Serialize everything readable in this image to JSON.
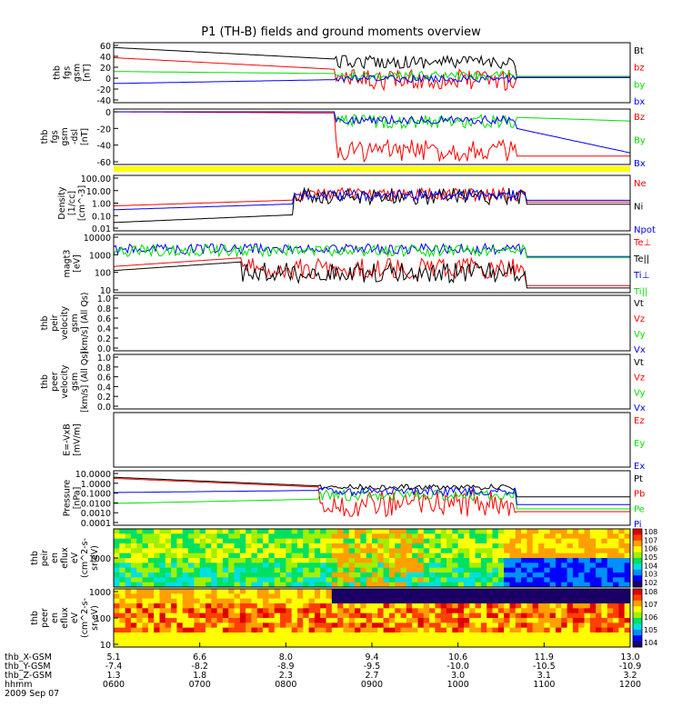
{
  "title": "P1 (TH-B) fields and ground moments overview",
  "colors": {
    "black": "#000000",
    "red": "#ff0000",
    "green": "#00e000",
    "blue": "#0000ff",
    "yellow": "#ffff00"
  },
  "chart_data": [
    {
      "type": "line",
      "id": "fgs-gsm",
      "ylabel": [
        "thb",
        "fgs",
        "gsm",
        "[nT]"
      ],
      "yticks": [
        "60",
        "40",
        "20",
        "0",
        "-20",
        "-40"
      ],
      "yrange": [
        -40,
        60
      ],
      "series": [
        {
          "name": "Bt",
          "color": "#000000"
        },
        {
          "name": "bz",
          "color": "#ff0000"
        },
        {
          "name": "by",
          "color": "#00e000"
        },
        {
          "name": "bx",
          "color": "#0000ff"
        }
      ]
    },
    {
      "type": "line",
      "id": "fgs-gsm-dsl",
      "ylabel": [
        "thb",
        "fgs",
        "gsm",
        "-dsl",
        "[nT]"
      ],
      "yticks": [
        "0",
        "-20",
        "-40",
        "-60"
      ],
      "yrange": [
        -70,
        5
      ],
      "series": [
        {
          "name": "Bz",
          "color": "#ff0000"
        },
        {
          "name": "By",
          "color": "#00e000"
        },
        {
          "name": "Bx",
          "color": "#0000ff"
        }
      ]
    },
    {
      "type": "line",
      "id": "density",
      "ylabel": [
        "Density",
        "[1/cc]",
        "[cm^-3]"
      ],
      "yticks": [
        "100.00",
        "10.00",
        "1.00",
        "0.10",
        "0.01"
      ],
      "yrange": [
        0.01,
        100
      ],
      "ylog": true,
      "series": [
        {
          "name": "Ne",
          "color": "#ff0000"
        },
        {
          "name": "Ni",
          "color": "#000000"
        },
        {
          "name": "Npot",
          "color": "#0000ff"
        }
      ]
    },
    {
      "type": "line",
      "id": "temperature",
      "ylabel": [
        "magt3",
        "[eV]"
      ],
      "yticks": [
        "10000",
        "1000",
        "100",
        "10"
      ],
      "yrange": [
        10,
        10000
      ],
      "ylog": true,
      "series": [
        {
          "name": "Te⊥",
          "color": "#ff0000"
        },
        {
          "name": "Te||",
          "color": "#000000"
        },
        {
          "name": "Ti⊥",
          "color": "#0000ff"
        },
        {
          "name": "Ti||",
          "color": "#00e000"
        }
      ]
    },
    {
      "type": "line",
      "id": "peir-velocity",
      "ylabel": [
        "thb",
        "peir",
        "velocity",
        "gsm",
        "[km/s] (All Qs)"
      ],
      "yticks": [
        "1.0",
        "0.8",
        "0.6",
        "0.4",
        "0.2",
        "0.0"
      ],
      "yrange": [
        0,
        1
      ],
      "series": [
        {
          "name": "Vt",
          "color": "#000000"
        },
        {
          "name": "Vz",
          "color": "#ff0000"
        },
        {
          "name": "Vy",
          "color": "#00e000"
        },
        {
          "name": "Vx",
          "color": "#0000ff"
        }
      ]
    },
    {
      "type": "line",
      "id": "peer-velocity",
      "ylabel": [
        "thb",
        "peer",
        "velocity",
        "gsm",
        "[km/s] (All Qs)"
      ],
      "yticks": [
        "1.0",
        "0.8",
        "0.6",
        "0.4",
        "0.2",
        "0.0"
      ],
      "yrange": [
        0,
        1
      ],
      "series": [
        {
          "name": "Vt",
          "color": "#000000"
        },
        {
          "name": "Vz",
          "color": "#ff0000"
        },
        {
          "name": "Vy",
          "color": "#00e000"
        },
        {
          "name": "Vx",
          "color": "#0000ff"
        }
      ]
    },
    {
      "type": "line",
      "id": "efield",
      "ylabel": [
        "E=-VxB",
        "[mV/m]"
      ],
      "yticks": [],
      "series": [
        {
          "name": "Ez",
          "color": "#ff0000"
        },
        {
          "name": "Ey",
          "color": "#00e000"
        },
        {
          "name": "Ex",
          "color": "#0000ff"
        }
      ]
    },
    {
      "type": "line",
      "id": "pressure",
      "ylabel": [
        "Pressure",
        "[nPa]"
      ],
      "yticks": [
        "10.0000",
        "1.0000",
        "0.1000",
        "0.0100",
        "0.0010",
        "0.0001"
      ],
      "yrange": [
        0.0001,
        10
      ],
      "ylog": true,
      "series": [
        {
          "name": "Pt",
          "color": "#000000"
        },
        {
          "name": "Pb",
          "color": "#ff0000"
        },
        {
          "name": "Pe",
          "color": "#00e000"
        },
        {
          "name": "Pi",
          "color": "#0000ff"
        }
      ]
    },
    {
      "type": "heatmap",
      "id": "peir-spectrogram",
      "ylabel": [
        "thb",
        "peir",
        "en",
        "eflux",
        "eV",
        "(cm^2-s-",
        "sr-eV)"
      ],
      "yticks": [
        "1000"
      ],
      "colorbar_ticks": [
        "10^8",
        "10^7",
        "10^6",
        "10^5",
        "10^4",
        "10^3",
        "10^2"
      ]
    },
    {
      "type": "heatmap",
      "id": "peer-spectrogram",
      "ylabel": [
        "thb",
        "peer",
        "en",
        "eflux",
        "eV",
        "(cm^2-s-",
        "sr-eV)"
      ],
      "yticks": [
        "1000",
        "100",
        "10"
      ],
      "colorbar_ticks": [
        "10^8",
        "10^7",
        "10^6",
        "10^5",
        "10^4"
      ]
    }
  ],
  "x_axis": {
    "rows": [
      {
        "label": "thb_X-GSM",
        "values": [
          "5.1",
          "6.6",
          "8.0",
          "9.4",
          "10.6",
          "11.9",
          "13.0"
        ]
      },
      {
        "label": "thb_Y-GSM",
        "values": [
          "-7.4",
          "-8.2",
          "-8.9",
          "-9.5",
          "-10.0",
          "-10.5",
          "-10.9"
        ]
      },
      {
        "label": "thb_Z-GSM",
        "values": [
          "1.3",
          "1.8",
          "2.3",
          "2.7",
          "3.0",
          "3.1",
          "3.2"
        ]
      },
      {
        "label": "hhmm",
        "values": [
          "0600",
          "0700",
          "0800",
          "0900",
          "1000",
          "1100",
          "1200"
        ]
      }
    ],
    "date": "2009 Sep 07"
  }
}
